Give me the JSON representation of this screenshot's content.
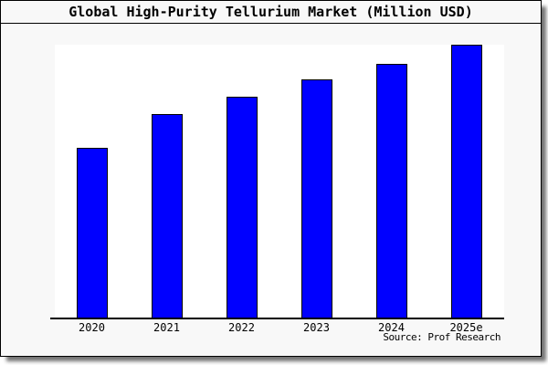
{
  "title": "Global High-Purity Tellurium Market (Million USD)",
  "source": "Source: Prof Research",
  "colors": {
    "bar_fill": "#0000ff",
    "bar_border": "#000000",
    "frame_background": "#f8f8f8",
    "plot_background": "#ffffff",
    "frame_border": "#000000",
    "text": "#000000",
    "shadow": "rgba(0,0,0,0.55)"
  },
  "chart_data": {
    "type": "bar",
    "title": "Global High-Purity Tellurium Market (Million USD)",
    "categories": [
      "2020",
      "2021",
      "2022",
      "2023",
      "2024",
      "2025e"
    ],
    "values": [
      186,
      223,
      242,
      261,
      278,
      299
    ],
    "value_note": "relative units estimated from bar heights; y-axis has no ticks or labels in the image",
    "xlabel": "",
    "ylabel": "",
    "ylim": [
      0,
      299
    ],
    "grid": false,
    "legend": false,
    "y_axis_shown": false,
    "x_axis_shown": true,
    "source_note": "Source: Prof Research"
  }
}
